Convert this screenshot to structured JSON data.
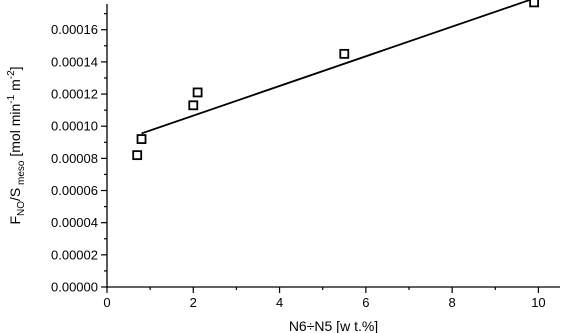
{
  "chart_data": {
    "type": "scatter",
    "xlabel": "N6÷N5 [w t.%]",
    "ylabel": {
      "f": "F",
      "f_sub": "NO",
      "s": "/S",
      "s_sub": " meso",
      "unit_open": " [mol min",
      "min_exp": "-1",
      "m_part": " m",
      "m_exp": "-2",
      "close": "]"
    },
    "xlim": [
      0,
      10.5
    ],
    "ylim": [
      0,
      0.000176
    ],
    "xticks": [
      {
        "value": 0,
        "label": "0"
      },
      {
        "value": 2,
        "label": "2"
      },
      {
        "value": 4,
        "label": "4"
      },
      {
        "value": 6,
        "label": "6"
      },
      {
        "value": 8,
        "label": "8"
      },
      {
        "value": 10,
        "label": "10"
      }
    ],
    "yticks": [
      {
        "value": 0,
        "label": "0.00000"
      },
      {
        "value": 2e-05,
        "label": "0.00002"
      },
      {
        "value": 4e-05,
        "label": "0.00004"
      },
      {
        "value": 6e-05,
        "label": "0.00006"
      },
      {
        "value": 8e-05,
        "label": "0.00008"
      },
      {
        "value": 0.0001,
        "label": "0.00010"
      },
      {
        "value": 0.00012,
        "label": "0.00012"
      },
      {
        "value": 0.00014,
        "label": "0.00014"
      },
      {
        "value": 0.00016,
        "label": "0.00016"
      }
    ],
    "series": [
      {
        "marker": "open-square",
        "x": [
          0.7,
          0.8,
          2.0,
          2.1,
          5.5,
          9.9
        ],
        "y": [
          8.2e-05,
          9.2e-05,
          0.000113,
          0.000121,
          0.000145,
          0.000177
        ]
      }
    ],
    "fit_line": {
      "x": [
        0.8,
        9.85
      ],
      "y": [
        9.55e-05,
        0.000179
      ]
    },
    "grid": false,
    "legend": "none",
    "color": "#000000"
  }
}
